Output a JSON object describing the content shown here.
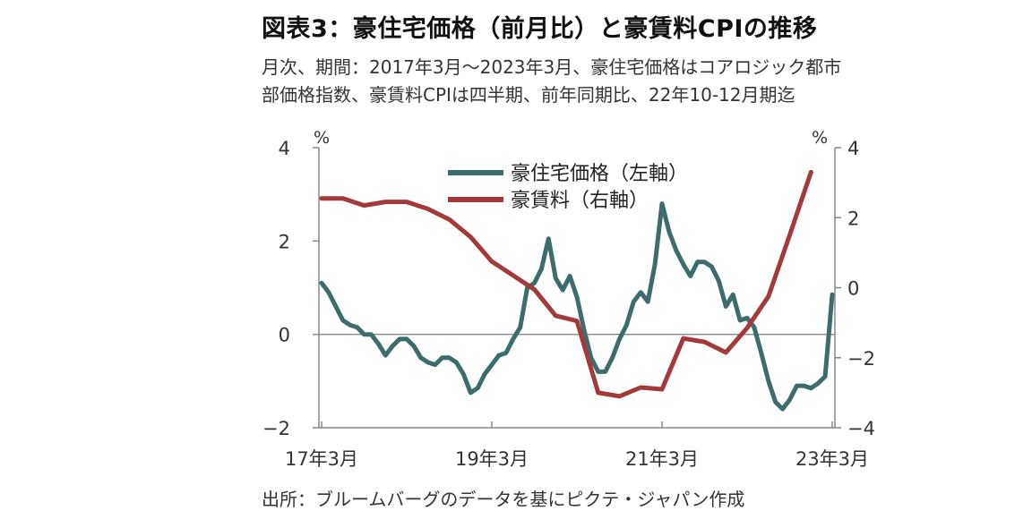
{
  "title": "図表3：豪住宅価格（前月比）と豪賃料CPIの推移",
  "subtitle_lines": [
    "月次、期間：2017年3月～2023年3月、豪住宅価格はコアロジック都市",
    "部価格指数、豪賃料CPIは四半期、前年同期比、22年10-12月期迄"
  ],
  "source": "出所：ブルームバーグのデータを基にピクテ・ジャパン作成",
  "colors": {
    "house": "#3e6b6b",
    "rent": "#a2393a",
    "axis": "#888888",
    "zero": "#888888"
  },
  "chart_data": {
    "type": "line",
    "unit_left": "%",
    "unit_right": "%",
    "x_ticks": [
      "17年3月",
      "19年3月",
      "21年3月",
      "23年3月"
    ],
    "x_tick_dates": [
      "2017-03",
      "2019-03",
      "2021-03",
      "2023-03"
    ],
    "x_range": [
      "2017-03",
      "2023-03"
    ],
    "y_left": {
      "range": [
        -2,
        4
      ],
      "ticks": [
        "4",
        "2",
        "0",
        "−2"
      ],
      "tick_values": [
        4,
        2,
        0,
        -2
      ]
    },
    "y_right": {
      "range": [
        -4,
        4
      ],
      "ticks": [
        "4",
        "2",
        "0",
        "−2",
        "−4"
      ],
      "tick_values": [
        4,
        2,
        0,
        -2,
        -4
      ]
    },
    "legend": {
      "placement": "top-center",
      "items": [
        "豪住宅価格（左軸）",
        "豪賃料（右軸）"
      ]
    },
    "series": [
      {
        "name": "豪住宅価格（左軸）",
        "axis": "left",
        "x": [
          "2017-03",
          "2017-04",
          "2017-05",
          "2017-06",
          "2017-07",
          "2017-08",
          "2017-09",
          "2017-10",
          "2017-11",
          "2017-12",
          "2018-01",
          "2018-02",
          "2018-03",
          "2018-04",
          "2018-05",
          "2018-06",
          "2018-07",
          "2018-08",
          "2018-09",
          "2018-10",
          "2018-11",
          "2018-12",
          "2019-01",
          "2019-02",
          "2019-03",
          "2019-04",
          "2019-05",
          "2019-06",
          "2019-07",
          "2019-08",
          "2019-09",
          "2019-10",
          "2019-11",
          "2019-12",
          "2020-01",
          "2020-02",
          "2020-03",
          "2020-04",
          "2020-05",
          "2020-06",
          "2020-07",
          "2020-08",
          "2020-09",
          "2020-10",
          "2020-11",
          "2020-12",
          "2021-01",
          "2021-02",
          "2021-03",
          "2021-04",
          "2021-05",
          "2021-06",
          "2021-07",
          "2021-08",
          "2021-09",
          "2021-10",
          "2021-11",
          "2021-12",
          "2022-01",
          "2022-02",
          "2022-03",
          "2022-04",
          "2022-05",
          "2022-06",
          "2022-07",
          "2022-08",
          "2022-09",
          "2022-10",
          "2022-11",
          "2022-12",
          "2023-01",
          "2023-02",
          "2023-03"
        ],
        "values": [
          1.1,
          0.9,
          0.6,
          0.3,
          0.2,
          0.15,
          0.0,
          0.0,
          -0.2,
          -0.45,
          -0.25,
          -0.1,
          -0.1,
          -0.25,
          -0.5,
          -0.6,
          -0.65,
          -0.5,
          -0.5,
          -0.6,
          -0.85,
          -1.25,
          -1.15,
          -0.85,
          -0.65,
          -0.45,
          -0.4,
          -0.1,
          0.15,
          1.0,
          1.1,
          1.4,
          2.05,
          1.2,
          0.95,
          1.25,
          0.8,
          0.1,
          -0.5,
          -0.8,
          -0.8,
          -0.5,
          -0.1,
          0.2,
          0.7,
          0.9,
          0.7,
          1.5,
          2.8,
          2.2,
          1.8,
          1.5,
          1.25,
          1.55,
          1.55,
          1.45,
          1.15,
          0.6,
          0.85,
          0.3,
          0.35,
          0.15,
          -0.4,
          -1.0,
          -1.45,
          -1.6,
          -1.4,
          -1.1,
          -1.1,
          -1.15,
          -1.05,
          -0.9,
          0.85
        ]
      },
      {
        "name": "豪賃料（右軸）",
        "axis": "right",
        "x": [
          "2017-03",
          "2017-06",
          "2017-09",
          "2017-12",
          "2018-03",
          "2018-06",
          "2018-09",
          "2018-12",
          "2019-03",
          "2019-06",
          "2019-09",
          "2019-12",
          "2020-03",
          "2020-06",
          "2020-09",
          "2020-12",
          "2021-03",
          "2021-06",
          "2021-09",
          "2021-12",
          "2022-03",
          "2022-06",
          "2022-09",
          "2022-12"
        ],
        "values": [
          2.55,
          2.55,
          2.35,
          2.45,
          2.45,
          2.25,
          1.95,
          1.45,
          0.75,
          0.35,
          -0.05,
          -0.8,
          -0.95,
          -3.0,
          -3.1,
          -2.85,
          -2.9,
          -1.45,
          -1.55,
          -1.85,
          -1.15,
          -0.25,
          1.5,
          3.3
        ]
      }
    ]
  }
}
